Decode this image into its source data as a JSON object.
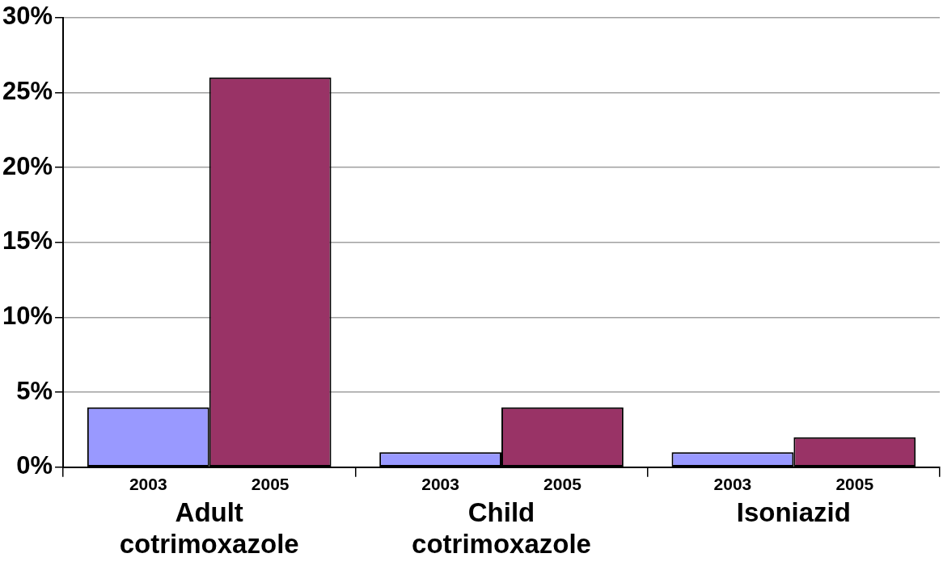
{
  "chart_data": {
    "type": "bar",
    "categories": [
      "Adult cotrimoxazole",
      "Child cotrimoxazole",
      "Isoniazid"
    ],
    "series": [
      {
        "name": "2003",
        "color": "#9999ff",
        "values": [
          4,
          1,
          1
        ]
      },
      {
        "name": "2005",
        "color": "#993366",
        "values": [
          26,
          4,
          2
        ]
      }
    ],
    "ylim": [
      0,
      30
    ],
    "yticks": [
      {
        "value": 0,
        "label": "0%"
      },
      {
        "value": 5,
        "label": "5%"
      },
      {
        "value": 10,
        "label": "10%"
      },
      {
        "value": 15,
        "label": "15%"
      },
      {
        "value": 20,
        "label": "20%"
      },
      {
        "value": 25,
        "label": "25%"
      },
      {
        "value": 30,
        "label": "30%"
      }
    ],
    "grid": "y",
    "legend": false
  }
}
